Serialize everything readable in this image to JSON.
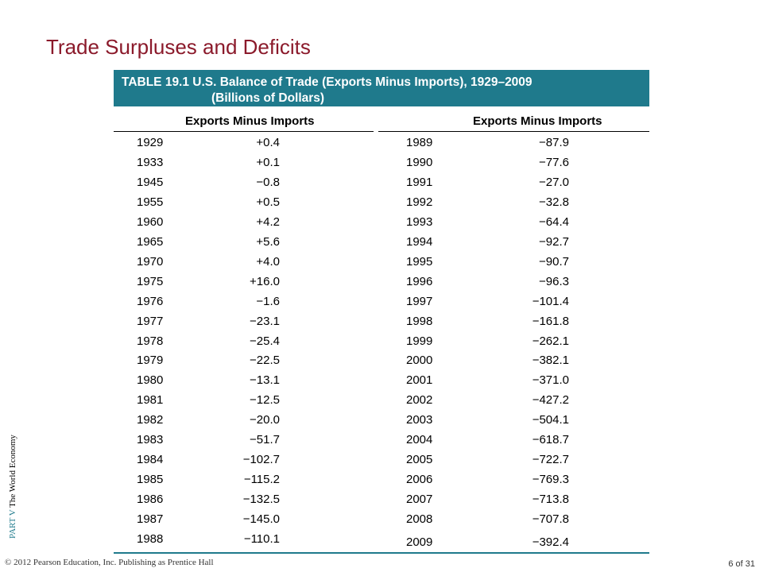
{
  "slide": {
    "title": "Trade Surpluses and Deficits",
    "table_title_line1": "TABLE 19.1  U.S. Balance of Trade (Exports Minus Imports), 1929–2009",
    "table_title_line2": "(Billions of Dollars)",
    "col_head_left": "Exports Minus Imports",
    "col_head_right": "Exports Minus Imports",
    "side_part": "PART V",
    "side_text": "The World Economy",
    "copyright": "© 2012 Pearson Education, Inc. Publishing as Prentice Hall",
    "page": "6 of 31"
  },
  "table": {
    "left": [
      {
        "year": "1929",
        "value": "+0.4"
      },
      {
        "year": "1933",
        "value": "+0.1"
      },
      {
        "year": "1945",
        "value": "−0.8"
      },
      {
        "year": "1955",
        "value": "+0.5"
      },
      {
        "year": "1960",
        "value": "+4.2"
      },
      {
        "year": "1965",
        "value": "+5.6"
      },
      {
        "year": "1970",
        "value": "+4.0"
      },
      {
        "year": "1975",
        "value": "+16.0"
      },
      {
        "year": "1976",
        "value": "−1.6"
      },
      {
        "year": "1977",
        "value": "−23.1"
      },
      {
        "year": "1978",
        "value": "−25.4"
      },
      {
        "year": "1979",
        "value": "−22.5"
      },
      {
        "year": "1980",
        "value": "−13.1"
      },
      {
        "year": "1981",
        "value": "−12.5"
      },
      {
        "year": "1982",
        "value": "−20.0"
      },
      {
        "year": "1983",
        "value": "−51.7"
      },
      {
        "year": "1984",
        "value": "−102.7"
      },
      {
        "year": "1985",
        "value": "−115.2"
      },
      {
        "year": "1986",
        "value": "−132.5"
      },
      {
        "year": "1987",
        "value": "−145.0"
      },
      {
        "year": "1988",
        "value": "−110.1"
      }
    ],
    "right": [
      {
        "year": "1989",
        "value": "−87.9"
      },
      {
        "year": "1990",
        "value": "−77.6"
      },
      {
        "year": "1991",
        "value": "−27.0"
      },
      {
        "year": "1992",
        "value": "−32.8"
      },
      {
        "year": "1993",
        "value": "−64.4"
      },
      {
        "year": "1994",
        "value": "−92.7"
      },
      {
        "year": "1995",
        "value": "−90.7"
      },
      {
        "year": "1996",
        "value": "−96.3"
      },
      {
        "year": "1997",
        "value": "−101.4"
      },
      {
        "year": "1998",
        "value": "−161.8"
      },
      {
        "year": "1999",
        "value": "−262.1"
      },
      {
        "year": "2000",
        "value": "−382.1"
      },
      {
        "year": "2001",
        "value": "−371.0"
      },
      {
        "year": "2002",
        "value": "−427.2"
      },
      {
        "year": "2003",
        "value": "−504.1"
      },
      {
        "year": "2004",
        "value": "−618.7"
      },
      {
        "year": "2005",
        "value": "−722.7"
      },
      {
        "year": "2006",
        "value": "−769.3"
      },
      {
        "year": "2007",
        "value": "−713.8"
      },
      {
        "year": "2008",
        "value": "−707.8"
      },
      {
        "year": "2009",
        "value": "−392.4"
      }
    ]
  }
}
